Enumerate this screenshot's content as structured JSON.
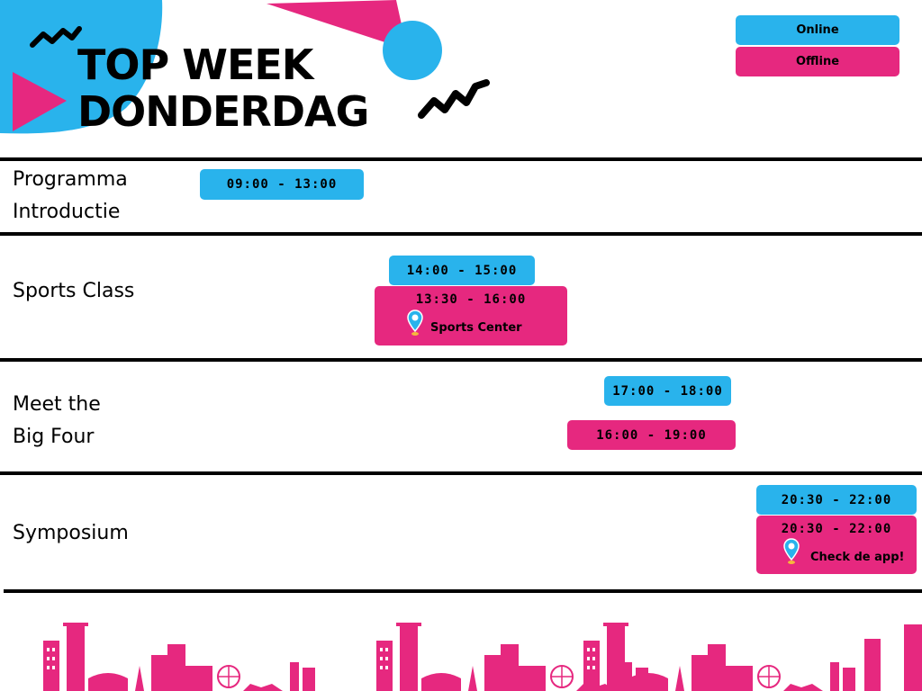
{
  "header": {
    "title_line1": "TOP WEEK",
    "title_line2": "DONDERDAG"
  },
  "legend": {
    "online": "Online",
    "offline": "Offline"
  },
  "colors": {
    "online": "#29b3ec",
    "offline": "#e6287f",
    "text": "#000000"
  },
  "rows": [
    {
      "label_line1": "Programma",
      "label_line2": "Introductie",
      "online_time": "09:00 - 13:00"
    },
    {
      "label_line1": "Sports Class",
      "online_time": "14:00 - 15:00",
      "offline_time": "13:30 - 16:00",
      "offline_location": "Sports Center"
    },
    {
      "label_line1": "Meet the",
      "label_line2": "Big Four",
      "online_time": "17:00 - 18:00",
      "offline_time": "16:00 - 19:00"
    },
    {
      "label_line1": "Symposium",
      "online_time": "20:30 - 22:00",
      "offline_time": "20:30 - 22:00",
      "offline_location": "Check de app!"
    }
  ],
  "icons": {
    "location": "location-pin-icon",
    "skyline": "city-skyline-illustration"
  }
}
